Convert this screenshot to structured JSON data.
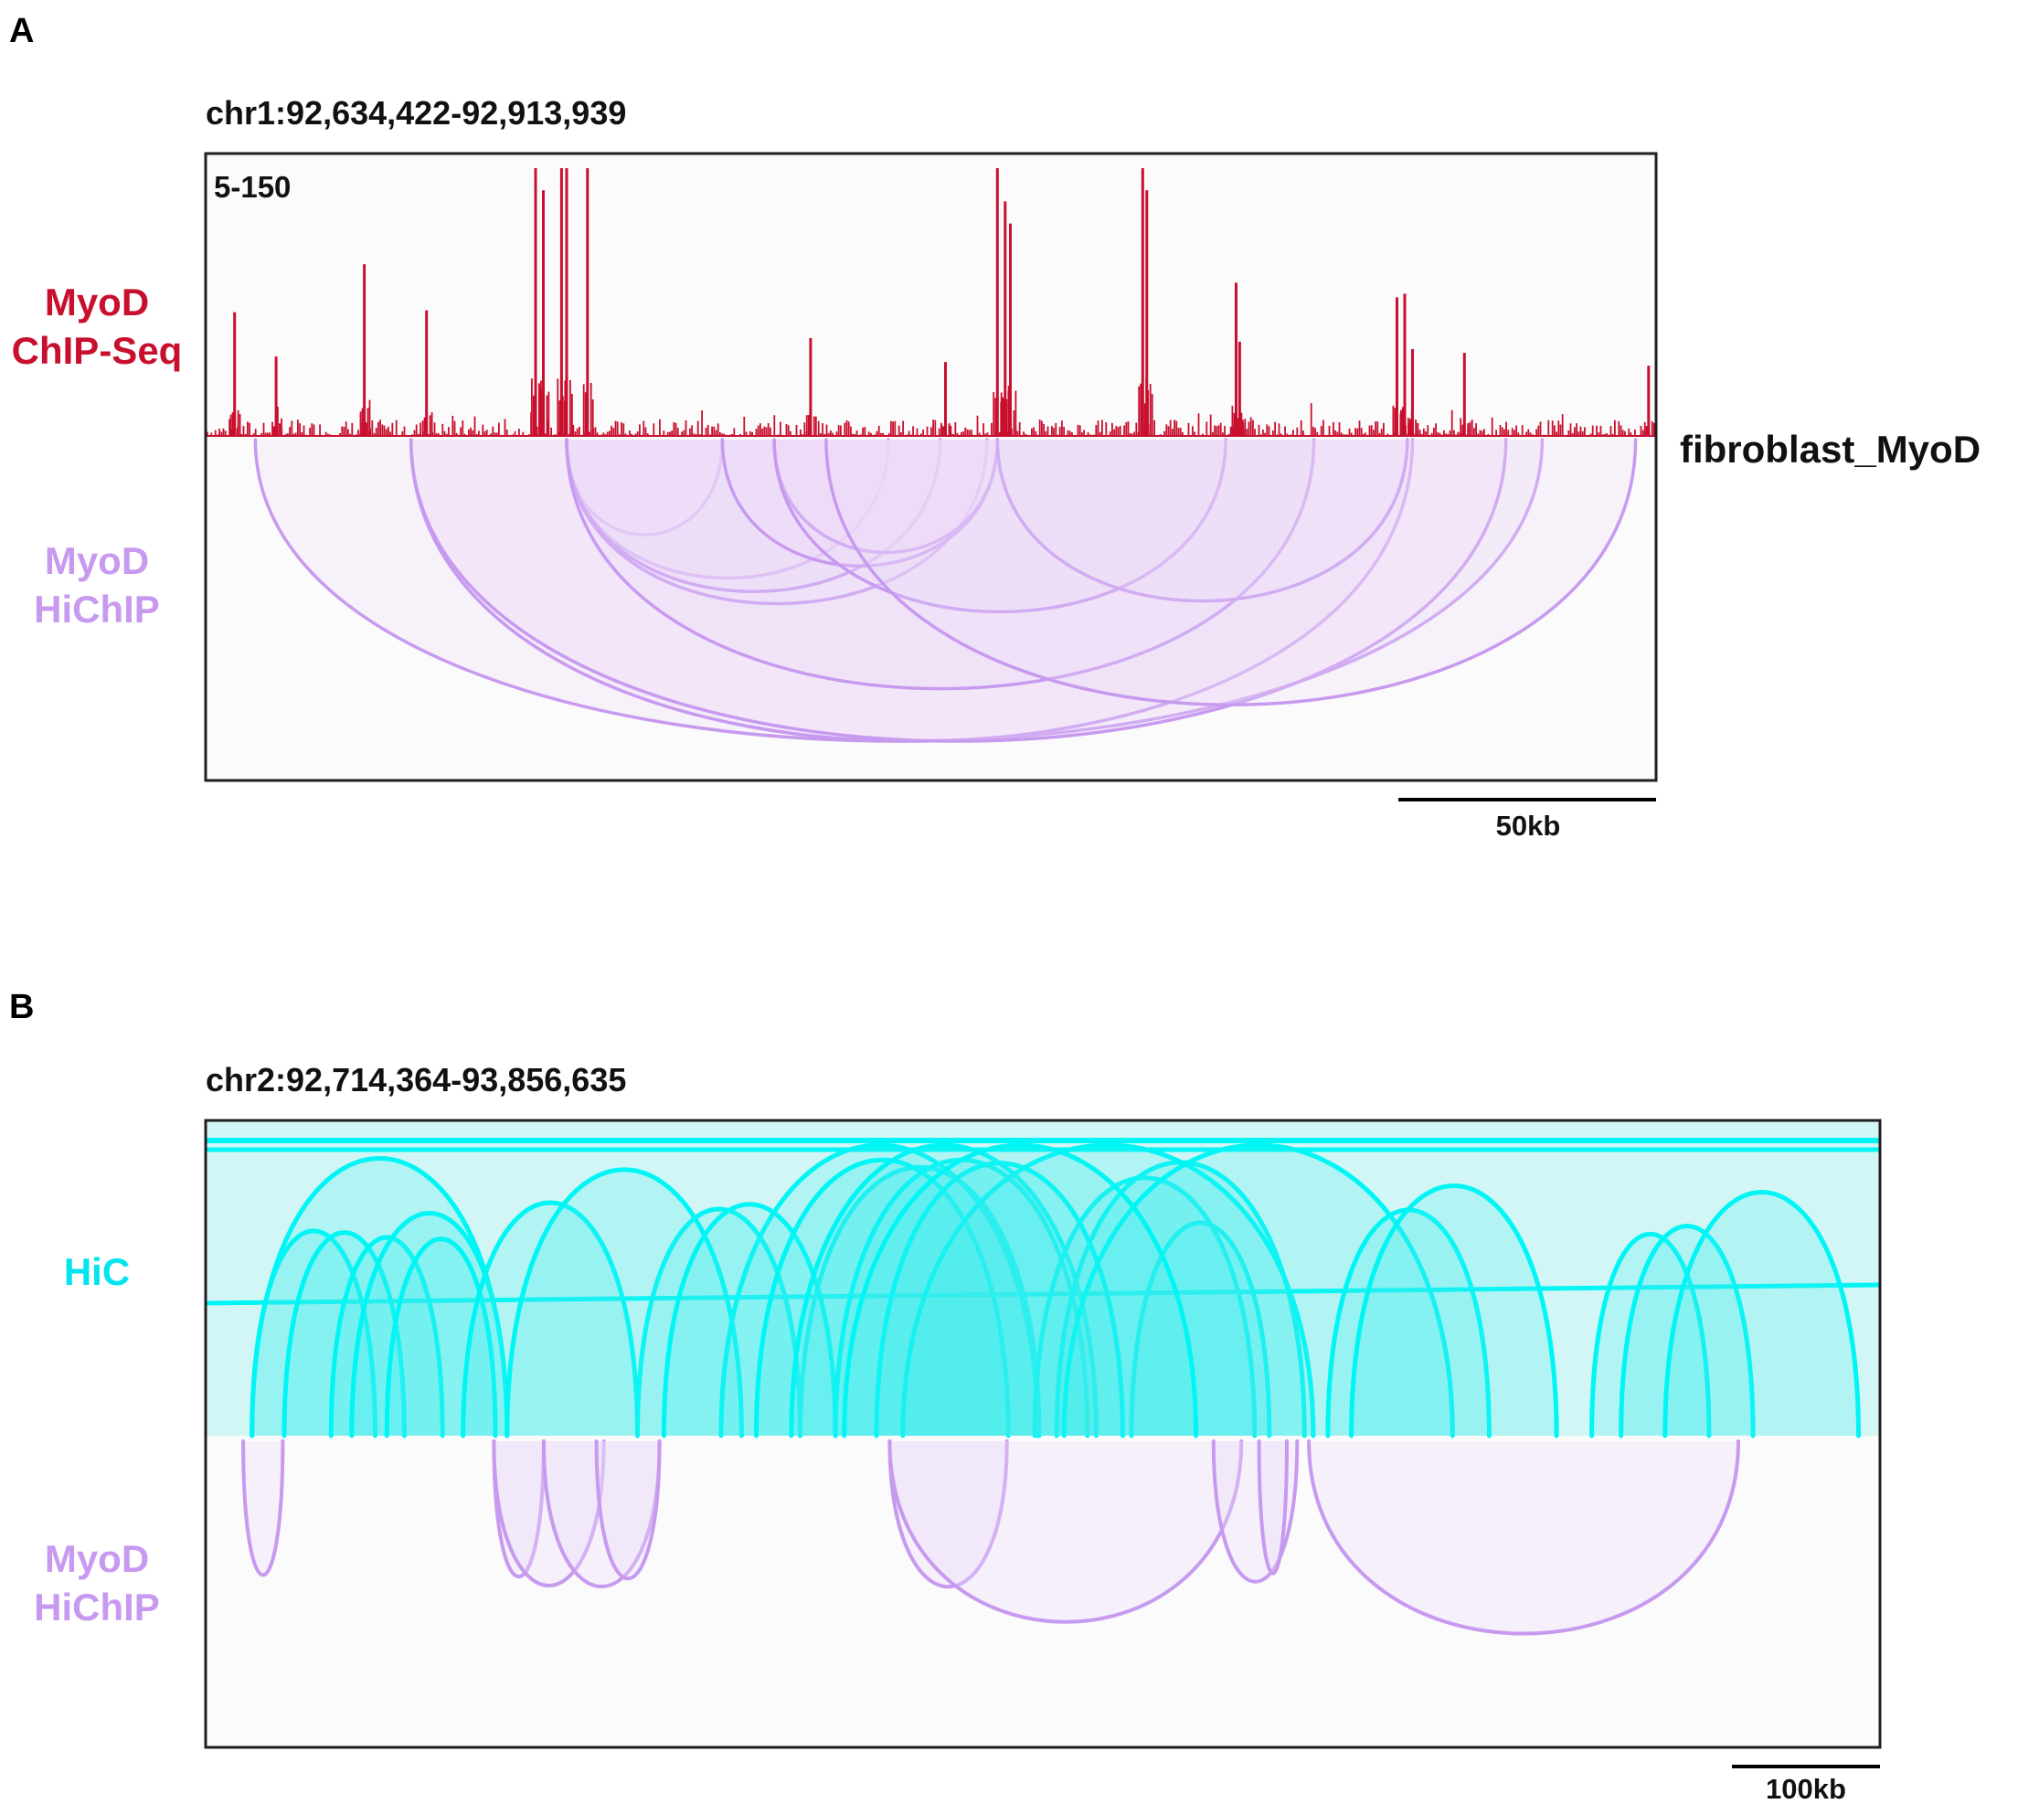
{
  "panels": {
    "a": {
      "letter": "A",
      "locus": "chr1:92,634,422-92,913,939",
      "range_label": "5-150",
      "chip_label": [
        "MyoD",
        "ChIP-Seq"
      ],
      "hichip_label": [
        "MyoD",
        "HiChIP"
      ],
      "sample_label": "fibroblast_MyoD",
      "scalebar_label": "50kb"
    },
    "b": {
      "letter": "B",
      "locus": "chr2:92,714,364-93,856,635",
      "hic_label": "HiC",
      "hichip_label": [
        "MyoD",
        "HiChIP"
      ],
      "scalebar_label": "100kb"
    }
  },
  "colors": {
    "chip": "#c8102e",
    "hichip_arc": "#c79af0",
    "hichip_fill": "#ecdcf8",
    "hic_arc": "#00f5f5",
    "hic_fill": "#bff4f4",
    "hic_label": "#00e5ef",
    "frame": "#231f20",
    "bg": "#fbfbfb"
  },
  "chart_data": [
    {
      "type": "area",
      "title": "MyoD ChIP-Seq signal, chr1:92,634,422-92,913,939",
      "ylim": [
        5,
        150
      ],
      "xlim": [
        92634422,
        92913939
      ],
      "scale_bar_kb": 50,
      "x": [
        92640000,
        92648000,
        92665000,
        92677000,
        92698000,
        92699500,
        92703000,
        92704000,
        92708000,
        92751000,
        92777000,
        92787000,
        92788500,
        92789500,
        92815000,
        92815800,
        92833000,
        92833700,
        92864000,
        92865500,
        92867000,
        92877000,
        92912500
      ],
      "values": [
        72,
        48,
        98,
        73,
        150,
        138,
        150,
        150,
        150,
        58,
        45,
        150,
        132,
        120,
        150,
        138,
        88,
        56,
        80,
        82,
        52,
        50,
        43
      ]
    },
    {
      "type": "arc",
      "title": "MyoD HiChIP loops, chr1",
      "xlim": [
        92634422,
        92913939
      ],
      "arcs": [
        [
          92644000,
          92892000
        ],
        [
          92674000,
          92867000
        ],
        [
          92674000,
          92885000
        ],
        [
          92704000,
          92734000
        ],
        [
          92704000,
          92766000
        ],
        [
          92704000,
          92785000
        ],
        [
          92704000,
          92776000
        ],
        [
          92704000,
          92848000
        ],
        [
          92734000,
          92787000
        ],
        [
          92744000,
          92787000
        ],
        [
          92744000,
          92831000
        ],
        [
          92787000,
          92866000
        ],
        [
          92754000,
          92910000
        ]
      ]
    },
    {
      "type": "arc",
      "title": "HiC loops, chr2:92,714,364-93,856,635",
      "xlim": [
        92714364,
        93856635
      ],
      "scale_bar_kb": 100,
      "arcs": [
        [
          92746000,
          92920000
        ],
        [
          92746000,
          92830000
        ],
        [
          92768000,
          92850000
        ],
        [
          92800000,
          92876000
        ],
        [
          92814000,
          92920000
        ],
        [
          92838000,
          92912000
        ],
        [
          92890000,
          93009000
        ],
        [
          93009000,
          93120000
        ],
        [
          93120000,
          93283000
        ],
        [
          92920000,
          93080000
        ],
        [
          93066000,
          93282000
        ],
        [
          93027000,
          93144000
        ],
        [
          93090000,
          93262000
        ],
        [
          93144000,
          93316000
        ],
        [
          93114000,
          93322000
        ],
        [
          93280000,
          93430000
        ],
        [
          93346000,
          93440000
        ],
        [
          93295000,
          93464000
        ],
        [
          93190000,
          93470000
        ],
        [
          93172000,
          93340000
        ],
        [
          93300000,
          93565000
        ],
        [
          93150000,
          93390000
        ],
        [
          93480000,
          93590000
        ],
        [
          93496000,
          93636000
        ],
        [
          93660000,
          93740000
        ],
        [
          93680000,
          93770000
        ],
        [
          93710000,
          93842000
        ]
      ]
    },
    {
      "type": "arc",
      "title": "MyoD HiChIP loops, chr2",
      "xlim": [
        92714364,
        93856635
      ],
      "arcs": [
        [
          92740000,
          92767000
        ],
        [
          92911000,
          92945000
        ],
        [
          92911000,
          92986000
        ],
        [
          92945000,
          93024000
        ],
        [
          92981000,
          93024000
        ],
        [
          93181000,
          93261000
        ],
        [
          93181000,
          93421000
        ],
        [
          93402000,
          93459000
        ],
        [
          93433000,
          93452000
        ],
        [
          93467000,
          93760000
        ]
      ]
    }
  ]
}
